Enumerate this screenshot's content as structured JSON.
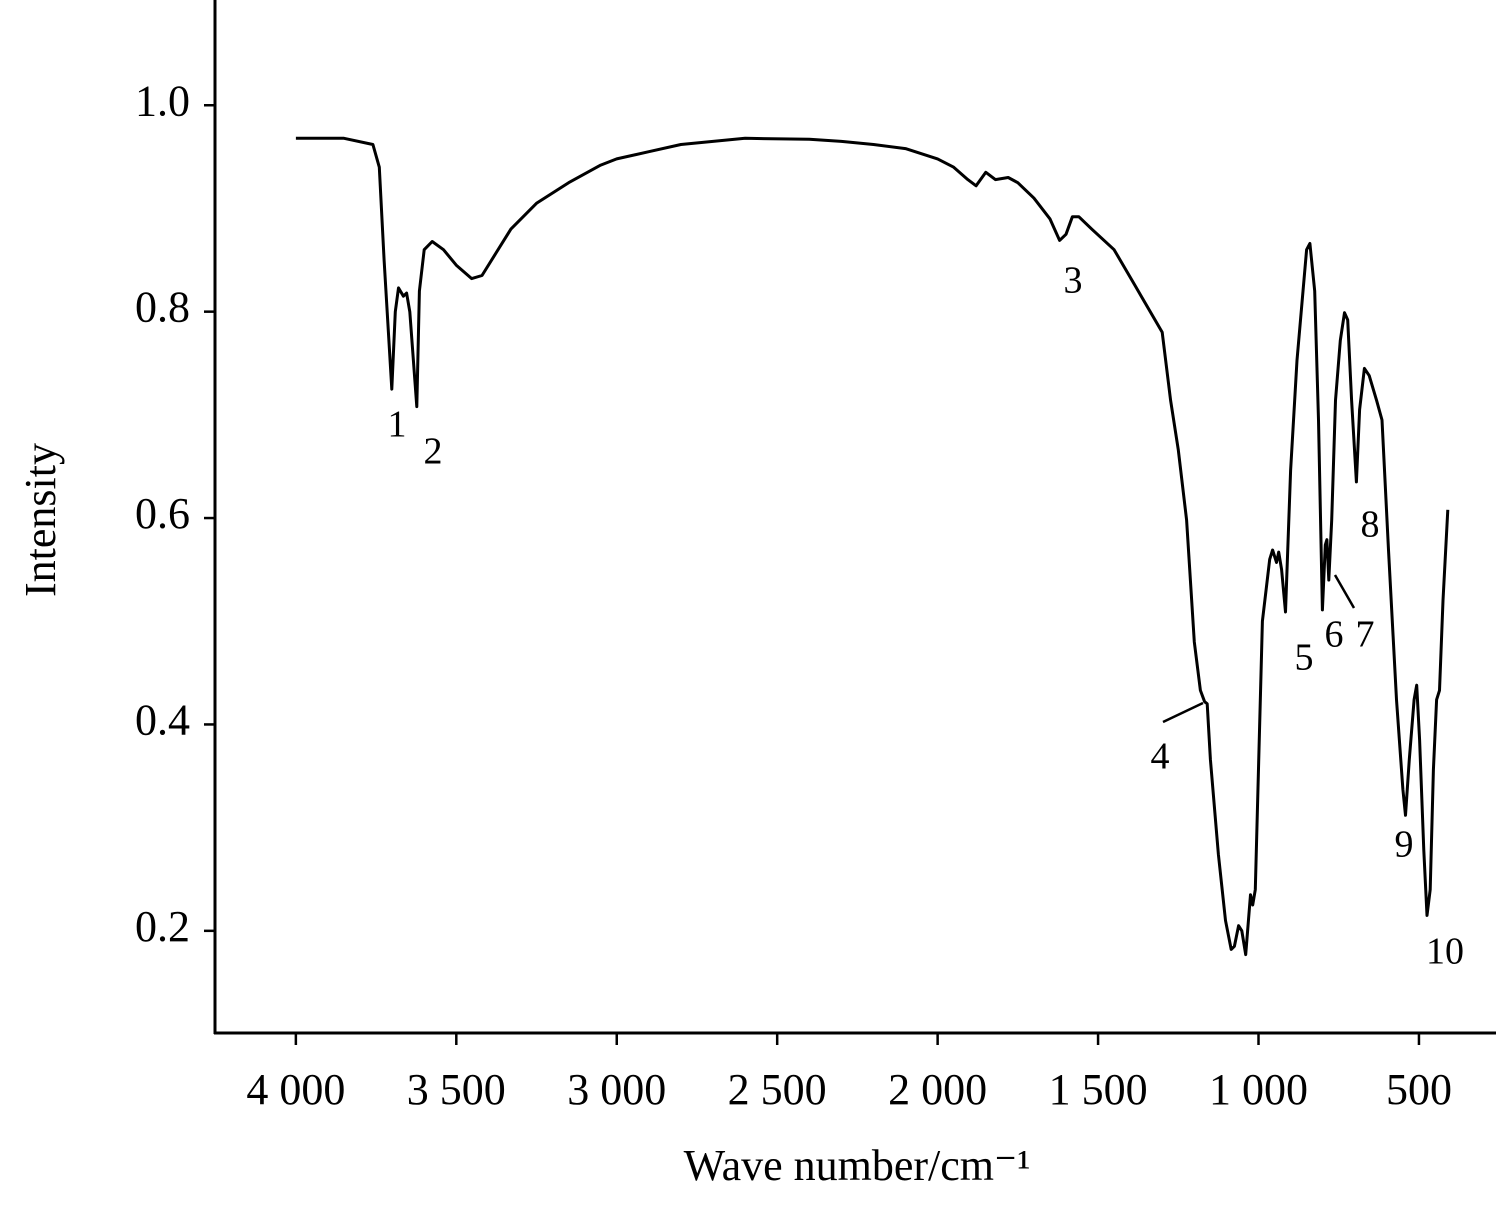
{
  "chart_data": {
    "type": "line",
    "x_label": "Wave number/cm⁻¹",
    "y_label": "Intensity",
    "xlim": [
      4252,
      263
    ],
    "ylim": [
      0.101,
      1.102
    ],
    "xticks": [
      {
        "value": 4000,
        "label": "4 000"
      },
      {
        "value": 3500,
        "label": "3 500"
      },
      {
        "value": 3000,
        "label": "3 000"
      },
      {
        "value": 2500,
        "label": "2 500"
      },
      {
        "value": 2000,
        "label": "2 000"
      },
      {
        "value": 1500,
        "label": "1 500"
      },
      {
        "value": 1000,
        "label": "1 000"
      },
      500
    ],
    "yticks": [
      0.2,
      0.4,
      0.6,
      0.8,
      {
        "value": 1.0,
        "label": "1.0"
      }
    ],
    "x": [
      4000,
      3850,
      3760,
      3740,
      3725,
      3701,
      3690,
      3680,
      3665,
      3655,
      3645,
      3623,
      3615,
      3600,
      3575,
      3540,
      3500,
      3452,
      3420,
      3380,
      3330,
      3250,
      3150,
      3050,
      3000,
      2900,
      2800,
      2600,
      2400,
      2300,
      2200,
      2100,
      2000,
      1950,
      1906,
      1880,
      1850,
      1820,
      1780,
      1750,
      1700,
      1650,
      1620,
      1600,
      1580,
      1560,
      1520,
      1450,
      1386,
      1300,
      1274,
      1250,
      1224,
      1200,
      1181,
      1168,
      1160,
      1150,
      1125,
      1103,
      1085,
      1075,
      1062,
      1052,
      1040,
      1025,
      1018,
      1010,
      988,
      965,
      956,
      944,
      937,
      928,
      916,
      900,
      880,
      850,
      840,
      825,
      813,
      801,
      792,
      787,
      781,
      772,
      760,
      745,
      732,
      722,
      710,
      695,
      685,
      670,
      655,
      632,
      615,
      595,
      570,
      550,
      542,
      530,
      515,
      507,
      498,
      485,
      475,
      465,
      455,
      445,
      436,
      425,
      410
    ],
    "series": [
      {
        "color": "#000000",
        "values": [
          0.968,
          0.968,
          0.962,
          0.94,
          0.85,
          0.725,
          0.8,
          0.823,
          0.815,
          0.818,
          0.8,
          0.708,
          0.82,
          0.86,
          0.868,
          0.86,
          0.845,
          0.832,
          0.835,
          0.855,
          0.88,
          0.905,
          0.925,
          0.942,
          0.948,
          0.955,
          0.962,
          0.968,
          0.967,
          0.965,
          0.962,
          0.958,
          0.948,
          0.94,
          0.928,
          0.922,
          0.935,
          0.928,
          0.93,
          0.925,
          0.91,
          0.89,
          0.869,
          0.875,
          0.892,
          0.892,
          0.88,
          0.86,
          0.826,
          0.78,
          0.714,
          0.666,
          0.598,
          0.48,
          0.433,
          0.422,
          0.42,
          0.366,
          0.274,
          0.21,
          0.182,
          0.185,
          0.205,
          0.2,
          0.177,
          0.235,
          0.225,
          0.24,
          0.5,
          0.56,
          0.569,
          0.557,
          0.567,
          0.55,
          0.509,
          0.646,
          0.753,
          0.86,
          0.866,
          0.82,
          0.695,
          0.511,
          0.574,
          0.579,
          0.54,
          0.598,
          0.714,
          0.772,
          0.799,
          0.792,
          0.714,
          0.635,
          0.705,
          0.745,
          0.738,
          0.714,
          0.695,
          0.569,
          0.424,
          0.337,
          0.312,
          0.366,
          0.424,
          0.438,
          0.385,
          0.278,
          0.215,
          0.24,
          0.356,
          0.424,
          0.433,
          0.52,
          0.608
        ]
      }
    ],
    "annotations": [
      "1",
      "2",
      "3",
      "4",
      "5",
      "6",
      "7",
      "8",
      "9",
      "10"
    ]
  }
}
